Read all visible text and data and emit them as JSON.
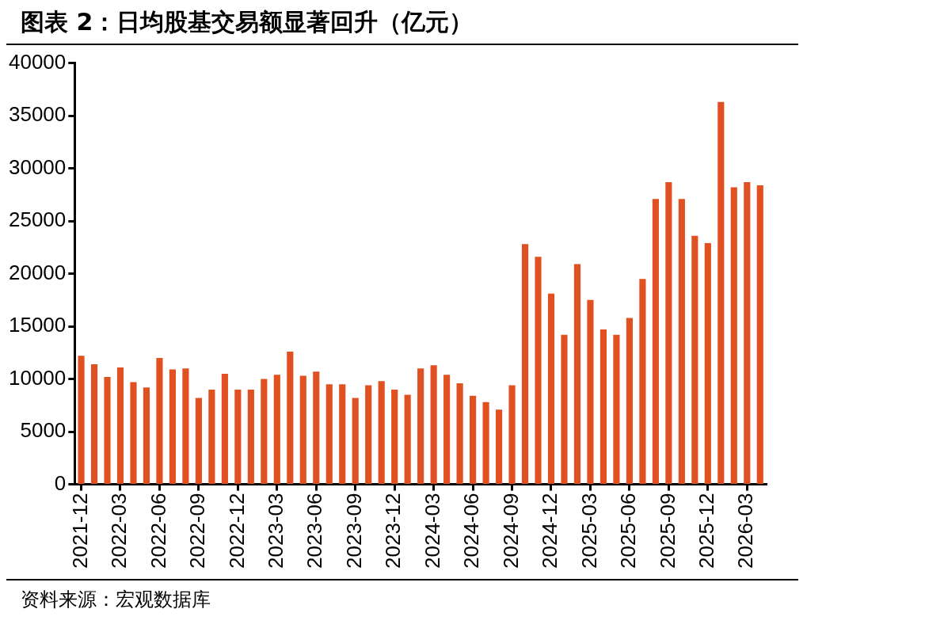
{
  "chart_data": {
    "type": "bar",
    "title": "图表 2：日均股基交易额显著回升（亿元）",
    "categories": [
      "2021-12",
      null,
      null,
      "2022-03",
      null,
      null,
      "2022-06",
      null,
      null,
      "2022-09",
      null,
      null,
      "2022-12",
      null,
      null,
      "2023-03",
      null,
      null,
      "2023-06",
      null,
      null,
      "2023-09",
      null,
      null,
      "2023-12",
      null,
      null,
      "2024-03",
      null,
      null,
      "2024-06",
      null,
      null,
      "2024-09",
      null,
      null,
      "2024-12",
      null,
      null,
      "2025-03",
      null,
      null,
      "2025-06",
      null,
      null,
      "2025-09",
      null,
      null,
      "2025-12",
      null,
      null,
      "2026-03",
      null
    ],
    "values": [
      12200,
      11400,
      10200,
      11100,
      9700,
      9200,
      12000,
      10900,
      11000,
      8200,
      9000,
      10500,
      9000,
      9000,
      10000,
      10400,
      12600,
      10300,
      10700,
      9500,
      9500,
      8200,
      9400,
      9800,
      9000,
      8500,
      11000,
      11300,
      10400,
      9600,
      8400,
      7800,
      7100,
      9400,
      22800,
      21600,
      18100,
      14200,
      20900,
      17500,
      14700,
      14200,
      15800,
      19500,
      27100,
      28700,
      27100,
      23600,
      22900,
      36300,
      28200,
      28700,
      28400
    ],
    "color": "#e05020",
    "ylim": [
      0,
      40000
    ],
    "yticks": [
      0,
      5000,
      10000,
      15000,
      20000,
      25000,
      30000,
      35000,
      40000
    ],
    "grid": false,
    "legend": false,
    "annotations": [
      "资料来源：宏观数据库"
    ]
  }
}
